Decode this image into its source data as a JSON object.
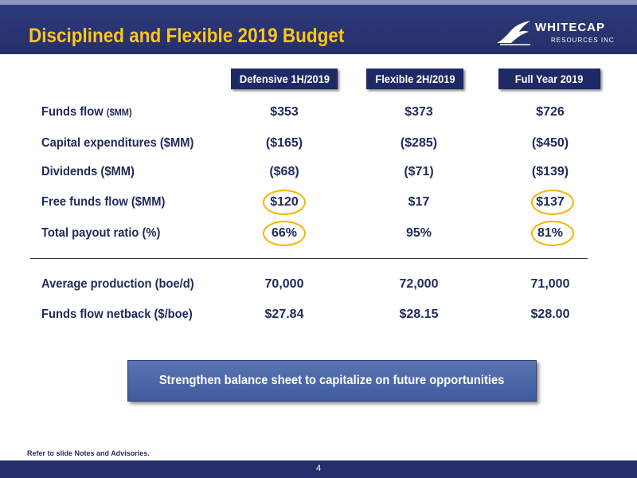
{
  "header": {
    "title": "Disciplined and Flexible 2019 Budget",
    "logo": {
      "word": "WHITECAP",
      "sub": "RESOURCES INC",
      "icon": "wave-icon"
    }
  },
  "columns": [
    "Defensive 1H/2019",
    "Flexible 2H/2019",
    "Full Year 2019"
  ],
  "rows": [
    {
      "label": "Funds flow",
      "label_small": "($MM)",
      "values": [
        "$353",
        "$373",
        "$726"
      ]
    },
    {
      "label": "Capital expenditures ($MM)",
      "label_small": "",
      "values": [
        "($165)",
        "($285)",
        "($450)"
      ]
    },
    {
      "label": "Dividends ($MM)",
      "label_small": "",
      "values": [
        "($68)",
        "($71)",
        "($139)"
      ]
    },
    {
      "label": "Free funds flow ($MM)",
      "label_small": "",
      "values": [
        "$120",
        "$17",
        "$137"
      ]
    },
    {
      "label": "Total payout ratio (%)",
      "label_small": "",
      "values": [
        "66%",
        "95%",
        "81%"
      ]
    },
    {
      "label": "Average production (boe/d)",
      "label_small": "",
      "values": [
        "70,000",
        "72,000",
        "71,000"
      ]
    },
    {
      "label": "Funds flow netback ($/boe)",
      "label_small": "",
      "values": [
        "$27.84",
        "$28.15",
        "$28.00"
      ]
    }
  ],
  "callout": "Strengthen balance sheet to capitalize on future opportunities",
  "footnote": "Refer to slide Notes and Advisories.",
  "page_number": "4",
  "colors": {
    "navy": "#252f6a",
    "gold": "#ffc61a",
    "highlight_circle": "#f5b400",
    "text": "#1f2a5c"
  }
}
